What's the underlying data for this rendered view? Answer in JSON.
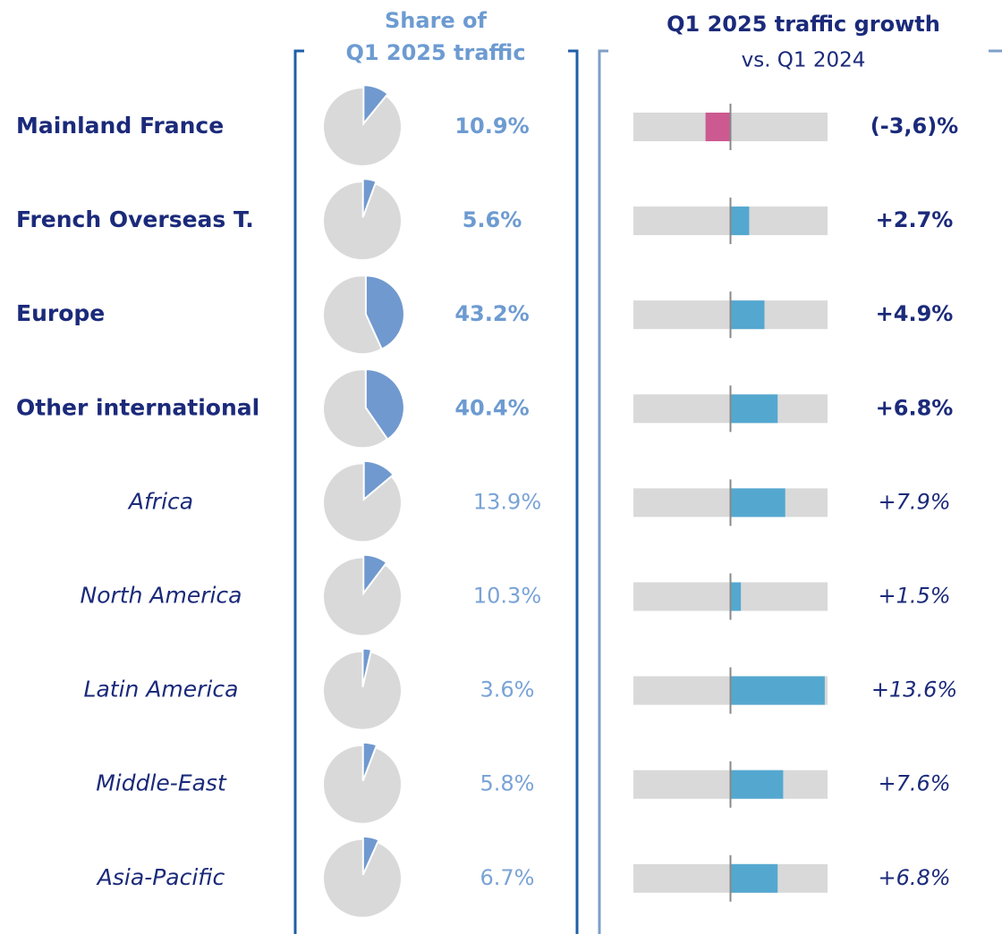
{
  "header": {
    "share_title_line1": "Share of",
    "share_title_line2": "Q1 2025 traffic",
    "growth_title": "Q1 2025 traffic growth",
    "growth_subtitle": "vs. Q1 2024"
  },
  "chart_data": {
    "type": "pie-bar-table",
    "xlim": [
      -14,
      14
    ],
    "colors": {
      "slice": "#7099cf",
      "pie_base": "#d9d9d9",
      "bar_positive": "#54a8d0",
      "bar_negative": "#cc5a90",
      "track": "#d9d9d9"
    },
    "rows": [
      {
        "name": "Mainland France",
        "bold": true,
        "share": 10.9,
        "share_label": "10.9%",
        "growth": -3.6,
        "growth_label": "(-3,6)%"
      },
      {
        "name": "French Overseas T.",
        "bold": true,
        "share": 5.6,
        "share_label": "5.6%",
        "growth": 2.7,
        "growth_label": "+2.7%"
      },
      {
        "name": "Europe",
        "bold": true,
        "share": 43.2,
        "share_label": "43.2%",
        "growth": 4.9,
        "growth_label": "+4.9%"
      },
      {
        "name": "Other international",
        "bold": true,
        "share": 40.4,
        "share_label": "40.4%",
        "growth": 6.8,
        "growth_label": "+6.8%"
      },
      {
        "name": "Africa",
        "bold": false,
        "share": 13.9,
        "share_label": "13.9%",
        "growth": 7.9,
        "growth_label": "+7.9%"
      },
      {
        "name": "North America",
        "bold": false,
        "share": 10.3,
        "share_label": "10.3%",
        "growth": 1.5,
        "growth_label": "+1.5%"
      },
      {
        "name": "Latin America",
        "bold": false,
        "share": 3.6,
        "share_label": "3.6%",
        "growth": 13.6,
        "growth_label": "+13.6%"
      },
      {
        "name": "Middle-East",
        "bold": false,
        "share": 5.8,
        "share_label": "5.8%",
        "growth": 7.6,
        "growth_label": "+7.6%"
      },
      {
        "name": "Asia-Pacific",
        "bold": false,
        "share": 6.7,
        "share_label": "6.7%",
        "growth": 6.8,
        "growth_label": "+6.8%"
      }
    ]
  }
}
